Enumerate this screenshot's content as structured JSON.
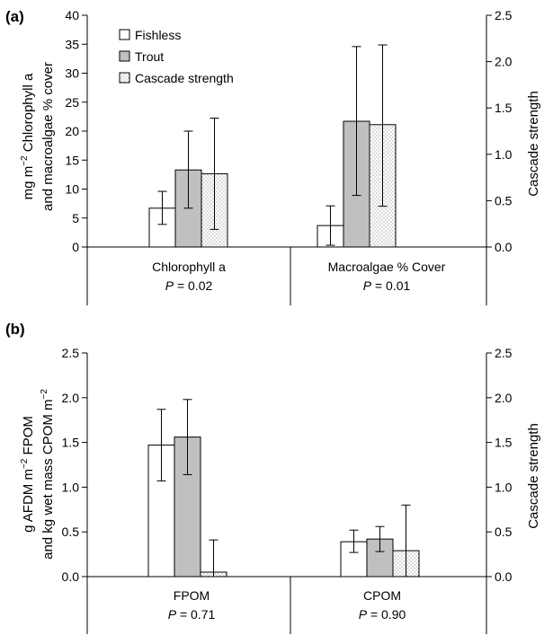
{
  "chart_data": [
    {
      "panel_label": "(a)",
      "type": "bar",
      "legend": [
        "Fishless",
        "Trout",
        "Cascade strength"
      ],
      "ylabel_left_line1": "mg m",
      "ylabel_left_sup": "−2",
      "ylabel_left_line1_rest": " Chlorophyll a",
      "ylabel_left_line2": "and macroalgae % cover",
      "ylabel_right": "Cascade strength",
      "ylim_left": [
        0,
        40
      ],
      "ylim_right": [
        0,
        2.5
      ],
      "yticks_left": [
        "0",
        "5",
        "10",
        "15",
        "20",
        "25",
        "30",
        "35",
        "40"
      ],
      "yticks_right": [
        "0.0",
        "0.5",
        "1.0",
        "1.5",
        "2.0",
        "2.5"
      ],
      "categories": [
        {
          "label": "Chlorophyll a",
          "p_label": "P",
          "p_value": " = 0.02"
        },
        {
          "label": "Macroalgae % Cover",
          "p_label": "P",
          "p_value": " = 0.01"
        }
      ],
      "series": [
        {
          "name": "Fishless",
          "axis": "left",
          "values": [
            6.7,
            3.7
          ],
          "err_low": [
            3.9,
            0.3
          ],
          "err_high": [
            9.6,
            7.1
          ]
        },
        {
          "name": "Trout",
          "axis": "left",
          "values": [
            13.3,
            21.7
          ],
          "err_low": [
            6.7,
            8.9
          ],
          "err_high": [
            20.0,
            34.6
          ]
        },
        {
          "name": "Cascade strength",
          "axis": "right",
          "values": [
            0.79,
            1.32
          ],
          "err_low": [
            0.19,
            0.44
          ],
          "err_high": [
            1.39,
            2.18
          ]
        }
      ]
    },
    {
      "panel_label": "(b)",
      "type": "bar",
      "ylabel_left_line1": "g AFDM m",
      "ylabel_left_sup1": "−2",
      "ylabel_left_line1_rest": " FPOM",
      "ylabel_left_line2": "and kg wet mass CPOM m",
      "ylabel_left_sup2": "−2",
      "ylabel_right": "Cascade strength",
      "ylim_left": [
        0,
        2.5
      ],
      "ylim_right": [
        0,
        2.5
      ],
      "yticks_left": [
        "0.0",
        "0.5",
        "1.0",
        "1.5",
        "2.0",
        "2.5"
      ],
      "yticks_right": [
        "0.0",
        "0.5",
        "1.0",
        "1.5",
        "2.0",
        "2.5"
      ],
      "categories": [
        {
          "label": "FPOM",
          "p_label": "P",
          "p_value": " = 0.71"
        },
        {
          "label": "CPOM",
          "p_label": "P",
          "p_value": " = 0.90"
        }
      ],
      "series": [
        {
          "name": "Fishless",
          "axis": "left",
          "values": [
            1.47,
            0.39
          ],
          "err_low": [
            1.07,
            0.27
          ],
          "err_high": [
            1.87,
            0.52
          ]
        },
        {
          "name": "Trout",
          "axis": "left",
          "values": [
            1.56,
            0.42
          ],
          "err_low": [
            1.14,
            0.28
          ],
          "err_high": [
            1.98,
            0.56
          ]
        },
        {
          "name": "Cascade strength",
          "axis": "right",
          "values": [
            0.05,
            0.29
          ],
          "err_low": [
            0.0,
            0.0
          ],
          "err_high": [
            0.41,
            0.8
          ]
        }
      ]
    }
  ],
  "colors": {
    "fishless": "#ffffff",
    "trout": "#c0c0c0",
    "cascade_dots": "#555555",
    "stroke": "#000000"
  }
}
